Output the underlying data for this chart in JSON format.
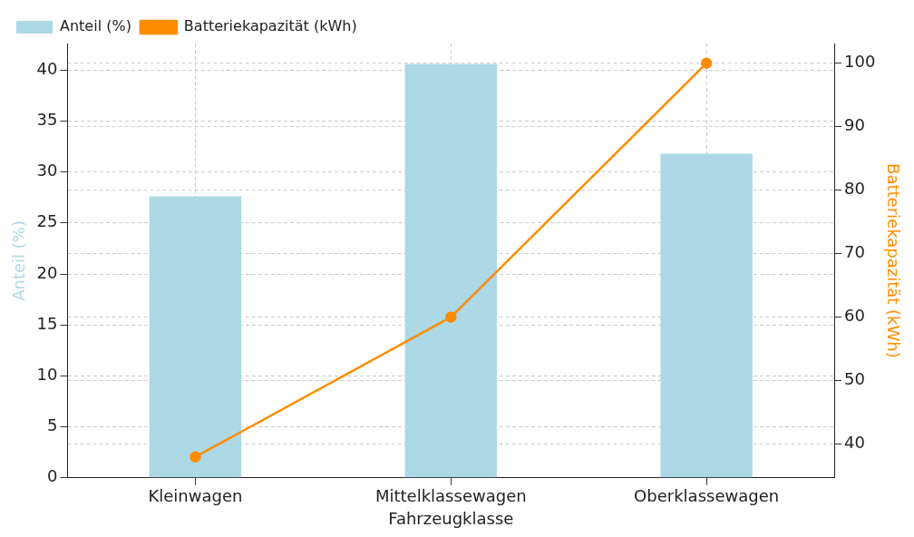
{
  "chart_data": {
    "type": "bar",
    "xlabel": "Fahrzeugklasse",
    "ylabel": "Anteil (%)",
    "y2label": "Batteriekapazität (kWh)",
    "categories": [
      "Kleinwagen",
      "Mittelklassewagen",
      "Oberklassewagen"
    ],
    "series": [
      {
        "name": "Anteil (%)",
        "color": "#add8e6",
        "values": [
          27.6,
          40.6,
          31.8
        ]
      },
      {
        "name": "Batteriekapazität (kWh)",
        "type": "line",
        "axis": "y2",
        "color": "#ff8c00",
        "values": [
          38,
          60,
          100
        ],
        "marker": "circle"
      }
    ],
    "ylim": [
      0,
      42.6
    ],
    "yticks": [
      0,
      5,
      10,
      15,
      20,
      25,
      30,
      35,
      40
    ],
    "y2lim": [
      34.7,
      103.1
    ],
    "y2ticks": [
      40,
      50,
      60,
      70,
      80,
      90,
      100
    ],
    "grid": true,
    "legend": "top left"
  }
}
